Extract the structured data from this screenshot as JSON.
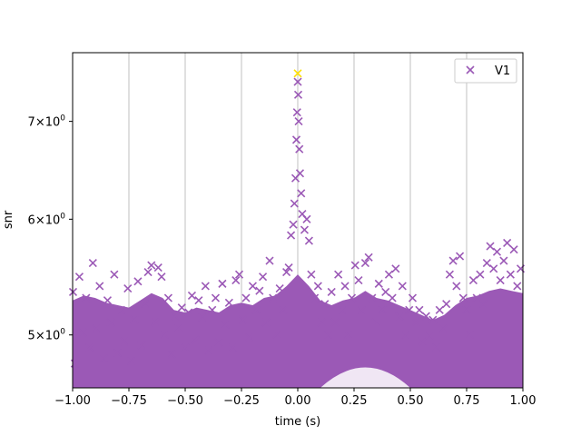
{
  "chart_data": {
    "type": "scatter",
    "xlabel": "time (s)",
    "ylabel": "snr",
    "xlim": [
      -1.0,
      1.0
    ],
    "ylim": [
      4.6,
      7.8
    ],
    "y_scale": "log",
    "grid": "vertical",
    "legend_position": "top-right",
    "x_ticks": [
      {
        "value": -1.0,
        "label": "−1.00"
      },
      {
        "value": -0.75,
        "label": "−0.75"
      },
      {
        "value": -0.5,
        "label": "−0.50"
      },
      {
        "value": -0.25,
        "label": "−0.25"
      },
      {
        "value": 0.0,
        "label": "0.00"
      },
      {
        "value": 0.25,
        "label": "0.25"
      },
      {
        "value": 0.5,
        "label": "0.50"
      },
      {
        "value": 0.75,
        "label": "0.75"
      },
      {
        "value": 1.0,
        "label": "1.00"
      }
    ],
    "y_ticks": [
      {
        "value": 5,
        "base": "5",
        "exp": "0"
      },
      {
        "value": 6,
        "base": "6",
        "exp": "0"
      },
      {
        "value": 7,
        "base": "7",
        "exp": "0"
      }
    ],
    "series": [
      {
        "name": "V1",
        "color": "#9b59b6",
        "marker": "x",
        "points": [
          [
            -0.998,
            5.35
          ],
          [
            -0.99,
            4.78
          ],
          [
            -0.97,
            5.48
          ],
          [
            -0.955,
            5.02
          ],
          [
            -0.94,
            5.3
          ],
          [
            -0.925,
            4.9
          ],
          [
            -0.91,
            5.6
          ],
          [
            -0.895,
            5.05
          ],
          [
            -0.88,
            5.4
          ],
          [
            -0.86,
            4.82
          ],
          [
            -0.845,
            5.28
          ],
          [
            -0.83,
            5.1
          ],
          [
            -0.815,
            5.5
          ],
          [
            -0.8,
            4.86
          ],
          [
            -0.785,
            5.2
          ],
          [
            -0.77,
            4.95
          ],
          [
            -0.755,
            5.38
          ],
          [
            -0.74,
            4.8
          ],
          [
            -0.725,
            5.12
          ],
          [
            -0.71,
            5.44
          ],
          [
            -0.695,
            4.92
          ],
          [
            -0.68,
            5.25
          ],
          [
            -0.665,
            5.52
          ],
          [
            -0.65,
            5.58
          ],
          [
            -0.635,
            5.1
          ],
          [
            -0.62,
            5.56
          ],
          [
            -0.605,
            5.48
          ],
          [
            -0.59,
            5.0
          ],
          [
            -0.575,
            5.3
          ],
          [
            -0.56,
            4.85
          ],
          [
            -0.545,
            5.15
          ],
          [
            -0.53,
            5.05
          ],
          [
            -0.515,
            5.22
          ],
          [
            -0.5,
            4.9
          ],
          [
            -0.485,
            5.18
          ],
          [
            -0.47,
            5.32
          ],
          [
            -0.455,
            4.96
          ],
          [
            -0.44,
            5.28
          ],
          [
            -0.425,
            5.14
          ],
          [
            -0.41,
            5.4
          ],
          [
            -0.395,
            4.88
          ],
          [
            -0.38,
            5.2
          ],
          [
            -0.365,
            5.3
          ],
          [
            -0.35,
            4.94
          ],
          [
            -0.335,
            5.42
          ],
          [
            -0.32,
            5.08
          ],
          [
            -0.305,
            5.26
          ],
          [
            -0.29,
            4.9
          ],
          [
            -0.275,
            5.45
          ],
          [
            -0.26,
            5.5
          ],
          [
            -0.245,
            5.12
          ],
          [
            -0.23,
            5.3
          ],
          [
            -0.215,
            4.98
          ],
          [
            -0.2,
            5.4
          ],
          [
            -0.185,
            5.2
          ],
          [
            -0.17,
            5.36
          ],
          [
            -0.155,
            5.48
          ],
          [
            -0.14,
            5.1
          ],
          [
            -0.125,
            5.62
          ],
          [
            -0.11,
            5.3
          ],
          [
            -0.095,
            5.0
          ],
          [
            -0.08,
            5.38
          ],
          [
            -0.065,
            5.2
          ],
          [
            -0.05,
            5.52
          ],
          [
            -0.04,
            5.56
          ],
          [
            -0.03,
            5.85
          ],
          [
            -0.02,
            5.95
          ],
          [
            -0.015,
            6.15
          ],
          [
            -0.01,
            6.4
          ],
          [
            -0.006,
            6.8
          ],
          [
            -0.003,
            7.1
          ],
          [
            0.0,
            7.45
          ],
          [
            0.002,
            7.3
          ],
          [
            0.004,
            7.0
          ],
          [
            0.007,
            6.7
          ],
          [
            0.01,
            6.45
          ],
          [
            0.015,
            6.25
          ],
          [
            0.02,
            6.05
          ],
          [
            0.03,
            5.9
          ],
          [
            0.04,
            6.0
          ],
          [
            0.05,
            5.8
          ],
          [
            0.06,
            5.5
          ],
          [
            0.075,
            5.3
          ],
          [
            0.09,
            5.4
          ],
          [
            0.105,
            5.1
          ],
          [
            0.12,
            5.25
          ],
          [
            0.135,
            5.0
          ],
          [
            0.15,
            5.35
          ],
          [
            0.165,
            5.1
          ],
          [
            0.18,
            5.5
          ],
          [
            0.195,
            5.2
          ],
          [
            0.21,
            5.4
          ],
          [
            0.225,
            5.0
          ],
          [
            0.24,
            5.3
          ],
          [
            0.255,
            5.58
          ],
          [
            0.27,
            5.45
          ],
          [
            0.285,
            5.2
          ],
          [
            0.3,
            5.6
          ],
          [
            0.315,
            5.65
          ],
          [
            0.33,
            5.3
          ],
          [
            0.345,
            5.1
          ],
          [
            0.36,
            5.42
          ],
          [
            0.375,
            5.2
          ],
          [
            0.39,
            5.35
          ],
          [
            0.405,
            5.5
          ],
          [
            0.42,
            5.3
          ],
          [
            0.435,
            5.55
          ],
          [
            0.45,
            5.15
          ],
          [
            0.465,
            5.4
          ],
          [
            0.48,
            5.0
          ],
          [
            0.495,
            5.2
          ],
          [
            0.51,
            5.3
          ],
          [
            0.525,
            5.1
          ],
          [
            0.54,
            5.2
          ],
          [
            0.555,
            4.95
          ],
          [
            0.57,
            5.15
          ],
          [
            0.585,
            5.0
          ],
          [
            0.6,
            5.12
          ],
          [
            0.615,
            4.9
          ],
          [
            0.63,
            5.2
          ],
          [
            0.645,
            5.05
          ],
          [
            0.66,
            5.25
          ],
          [
            0.675,
            5.5
          ],
          [
            0.69,
            5.62
          ],
          [
            0.705,
            5.4
          ],
          [
            0.72,
            5.66
          ],
          [
            0.735,
            5.3
          ],
          [
            0.75,
            5.2
          ],
          [
            0.765,
            5.0
          ],
          [
            0.78,
            5.45
          ],
          [
            0.795,
            5.3
          ],
          [
            0.81,
            5.5
          ],
          [
            0.825,
            5.25
          ],
          [
            0.84,
            5.6
          ],
          [
            0.855,
            5.75
          ],
          [
            0.87,
            5.55
          ],
          [
            0.885,
            5.7
          ],
          [
            0.9,
            5.45
          ],
          [
            0.915,
            5.62
          ],
          [
            0.93,
            5.78
          ],
          [
            0.945,
            5.5
          ],
          [
            0.96,
            5.72
          ],
          [
            0.975,
            5.4
          ],
          [
            0.99,
            5.55
          ]
        ]
      },
      {
        "name": "",
        "color": "#ffe000",
        "marker": "x",
        "points": [
          [
            0.0,
            7.55
          ]
        ]
      }
    ],
    "band": {
      "color": "#9b59b6",
      "lower_default": 4.6,
      "segments": [
        [
          -1.0,
          5.28
        ],
        [
          -0.95,
          5.32
        ],
        [
          -0.9,
          5.3
        ],
        [
          -0.85,
          5.26
        ],
        [
          -0.8,
          5.24
        ],
        [
          -0.75,
          5.22
        ],
        [
          -0.7,
          5.28
        ],
        [
          -0.65,
          5.34
        ],
        [
          -0.6,
          5.3
        ],
        [
          -0.55,
          5.2
        ],
        [
          -0.5,
          5.18
        ],
        [
          -0.45,
          5.22
        ],
        [
          -0.4,
          5.2
        ],
        [
          -0.35,
          5.18
        ],
        [
          -0.3,
          5.24
        ],
        [
          -0.25,
          5.26
        ],
        [
          -0.2,
          5.24
        ],
        [
          -0.15,
          5.3
        ],
        [
          -0.1,
          5.32
        ],
        [
          -0.05,
          5.4
        ],
        [
          0.0,
          5.5
        ],
        [
          0.05,
          5.4
        ],
        [
          0.1,
          5.28
        ],
        [
          0.15,
          5.24
        ],
        [
          0.2,
          5.28
        ],
        [
          0.25,
          5.3
        ],
        [
          0.3,
          5.36
        ],
        [
          0.35,
          5.3
        ],
        [
          0.4,
          5.28
        ],
        [
          0.45,
          5.24
        ],
        [
          0.5,
          5.2
        ],
        [
          0.55,
          5.16
        ],
        [
          0.6,
          5.12
        ],
        [
          0.65,
          5.16
        ],
        [
          0.7,
          5.24
        ],
        [
          0.75,
          5.3
        ],
        [
          0.8,
          5.32
        ],
        [
          0.85,
          5.36
        ],
        [
          0.9,
          5.38
        ],
        [
          0.95,
          5.36
        ],
        [
          1.0,
          5.34
        ]
      ],
      "notch": {
        "x_start": 0.1,
        "x_end": 0.5,
        "upper": 4.85
      }
    }
  }
}
